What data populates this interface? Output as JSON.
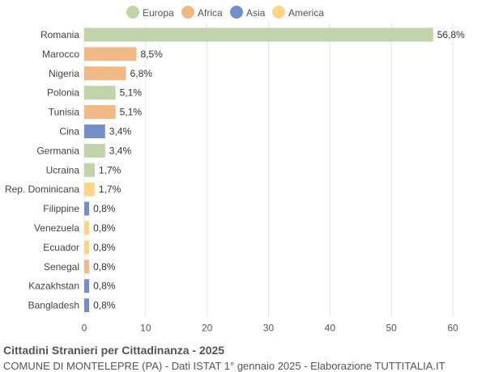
{
  "chart_data": {
    "type": "bar",
    "orientation": "horizontal",
    "categories": [
      "Romania",
      "Marocco",
      "Nigeria",
      "Polonia",
      "Tunisia",
      "Cina",
      "Germania",
      "Ucraina",
      "Rep. Dominicana",
      "Filippine",
      "Venezuela",
      "Ecuador",
      "Senegal",
      "Kazakhstan",
      "Bangladesh"
    ],
    "values": [
      56.8,
      8.5,
      6.8,
      5.1,
      5.1,
      3.4,
      3.4,
      1.7,
      1.7,
      0.8,
      0.8,
      0.8,
      0.8,
      0.8,
      0.8
    ],
    "value_labels": [
      "56,8%",
      "8,5%",
      "6,8%",
      "5,1%",
      "5,1%",
      "3,4%",
      "3,4%",
      "1,7%",
      "1,7%",
      "0,8%",
      "0,8%",
      "0,8%",
      "0,8%",
      "0,8%",
      "0,8%"
    ],
    "continents": [
      "Europa",
      "Africa",
      "Africa",
      "Europa",
      "Africa",
      "Asia",
      "Europa",
      "Europa",
      "America",
      "Asia",
      "America",
      "America",
      "Africa",
      "Asia",
      "Asia"
    ],
    "legend": [
      {
        "name": "Europa",
        "color": "#c1d3a9"
      },
      {
        "name": "Africa",
        "color": "#f0b985"
      },
      {
        "name": "Asia",
        "color": "#728fc8"
      },
      {
        "name": "America",
        "color": "#fdd587"
      }
    ],
    "legend_position": "top",
    "xlim": [
      0,
      60
    ],
    "xticks": [
      0,
      10,
      20,
      30,
      40,
      50,
      60
    ],
    "grid": true
  },
  "footer": {
    "title": "Cittadini Stranieri per Cittadinanza - 2025",
    "subtitle": "COMUNE DI MONTELEPRE (PA) - Dati ISTAT 1° gennaio 2025 - Elaborazione TUTTITALIA.IT"
  }
}
